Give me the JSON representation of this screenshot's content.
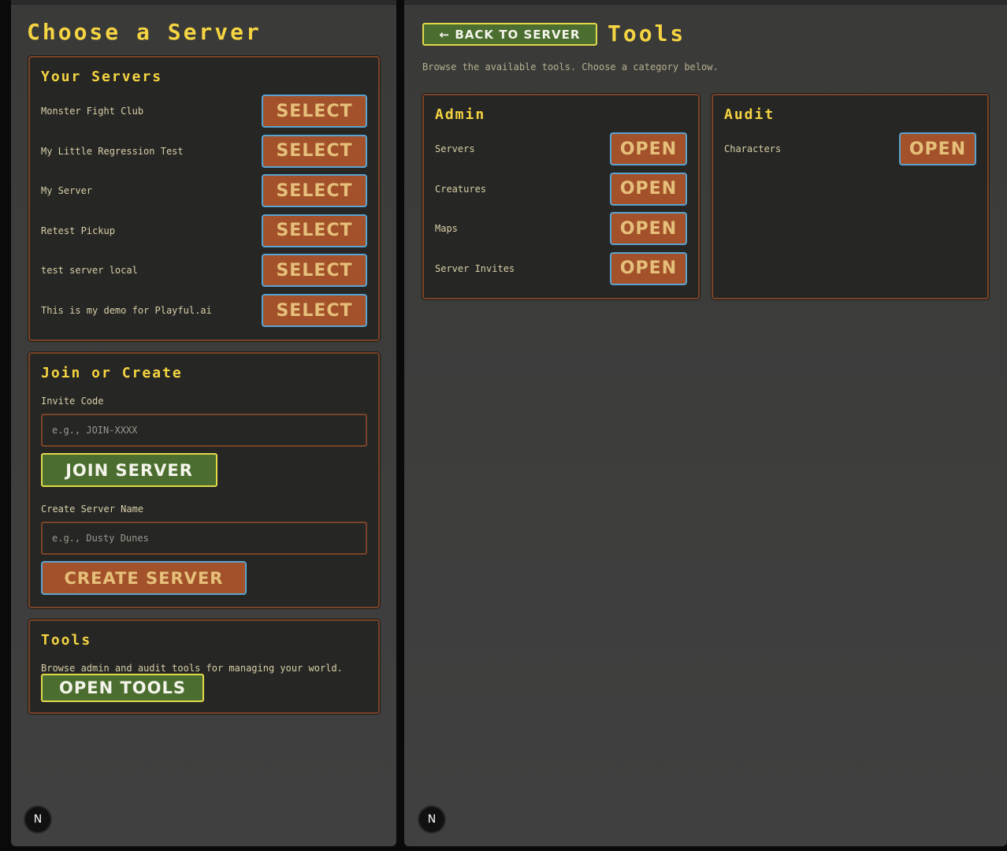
{
  "left": {
    "title": "Choose a Server",
    "your_servers": {
      "title": "Your Servers",
      "items": [
        {
          "name": "Monster Fight Club",
          "button": "SELECT"
        },
        {
          "name": "My Little Regression Test",
          "button": "SELECT"
        },
        {
          "name": "My Server",
          "button": "SELECT"
        },
        {
          "name": "Retest Pickup",
          "button": "SELECT"
        },
        {
          "name": "test server local",
          "button": "SELECT"
        },
        {
          "name": "This is my demo for Playful.ai",
          "button": "SELECT"
        }
      ]
    },
    "join_create": {
      "title": "Join or Create",
      "invite_label": "Invite Code",
      "invite_placeholder": "e.g., JOIN-XXXX",
      "join_button": "JOIN SERVER",
      "create_label": "Create Server Name",
      "create_placeholder": "e.g., Dusty Dunes",
      "create_button": "CREATE SERVER"
    },
    "tools": {
      "title": "Tools",
      "description": "Browse admin and audit tools for managing your world.",
      "button": "OPEN TOOLS"
    }
  },
  "right": {
    "back_button": "← BACK TO SERVER",
    "title": "Tools",
    "description": "Browse the available tools. Choose a category below.",
    "categories": [
      {
        "title": "Admin",
        "items": [
          {
            "name": "Servers",
            "button": "OPEN"
          },
          {
            "name": "Creatures",
            "button": "OPEN"
          },
          {
            "name": "Maps",
            "button": "OPEN"
          },
          {
            "name": "Server Invites",
            "button": "OPEN"
          }
        ]
      },
      {
        "title": "Audit",
        "items": [
          {
            "name": "Characters",
            "button": "OPEN"
          }
        ]
      }
    ]
  },
  "badge": "N",
  "colors": {
    "accent": "#f5d442",
    "button_orange": "#a3512a",
    "button_green": "#4b6e30"
  }
}
